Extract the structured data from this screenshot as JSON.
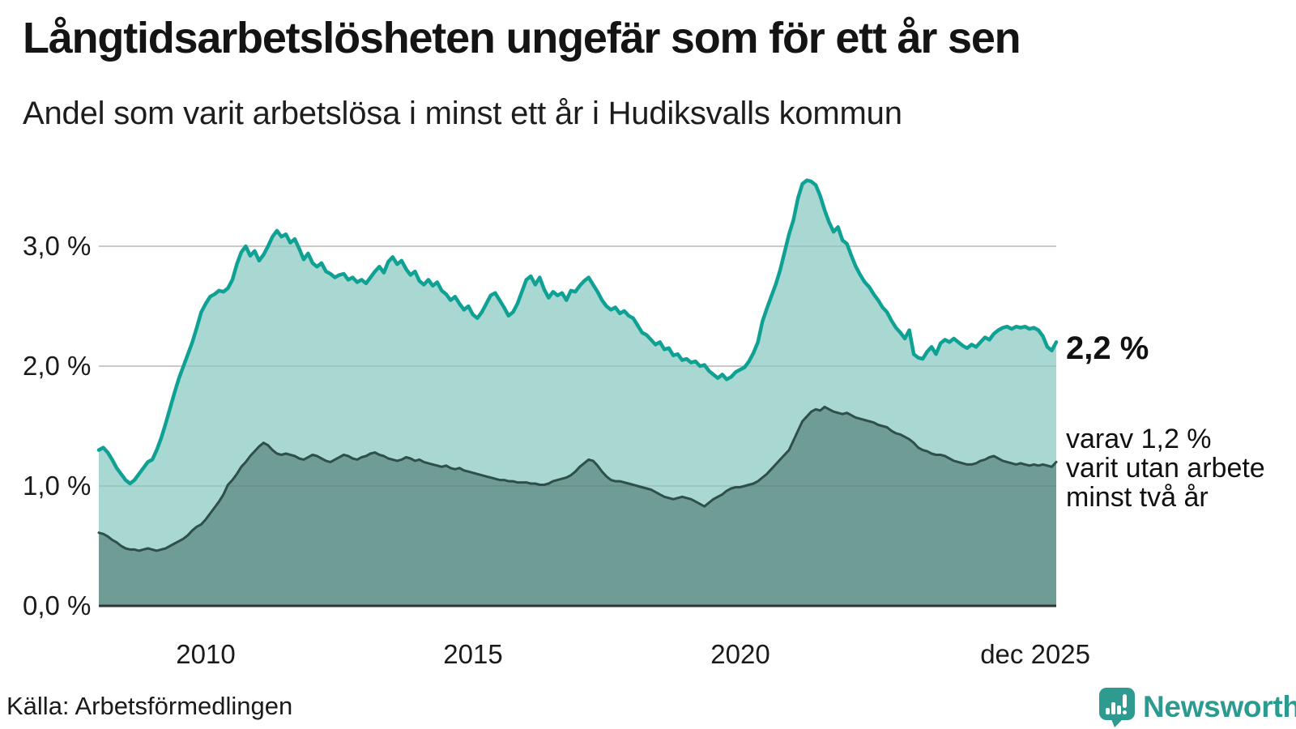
{
  "header": {
    "title": "Långtidsarbetslösheten ungefär som för ett år sen",
    "subtitle": "Andel som varit arbetslösa i minst ett år i Hudiksvalls kommun"
  },
  "footer": {
    "source": "Källa: Arbetsförmedlingen",
    "brand": "Newsworthy"
  },
  "colors": {
    "accent_teal_line": "#0fa294",
    "light_area_fill": "#a9d7d1",
    "dark_area_fill": "#6f9d96",
    "dark_line": "#2f4f49",
    "gridline": "#d9d9d9",
    "axis_baseline": "#333333",
    "brand_teal": "#2c9a90",
    "text_dark": "#141414"
  },
  "chart_data": {
    "type": "area",
    "title": "Långtidsarbetslösheten ungefär som för ett år sen",
    "subtitle": "Andel som varit arbetslösa i minst ett år i Hudiksvalls kommun",
    "x_start": "2008-01",
    "x_end": "2025-12",
    "frequency": "monthly",
    "grid": "horizontal",
    "legend_position": "none",
    "ylim": [
      0,
      3.8
    ],
    "unit": "%",
    "y_ticks": [
      {
        "value": 3,
        "label": "3,0 %"
      },
      {
        "value": 2,
        "label": "2,0 %"
      },
      {
        "value": 1,
        "label": "1,0 %"
      },
      {
        "value": 0,
        "label": "0,0 %"
      }
    ],
    "x_ticks": [
      {
        "year": 2010,
        "label": "2010"
      },
      {
        "year": 2015,
        "label": "2015"
      },
      {
        "year": 2020,
        "label": "2020"
      },
      {
        "year": 2025.92,
        "label": "dec 2025"
      }
    ],
    "end_label": "2,2 %",
    "annotation_lines": {
      "line1": "varav 1,2 %",
      "line2": "varit utan arbete",
      "line3": "minst två år"
    },
    "series": [
      {
        "name": "Andel som varit arbetslösa minst ett år",
        "color": "#0fa294",
        "fill": "#a9d7d1",
        "end_value_pct": 2.2,
        "values": [
          1.3,
          1.32,
          1.28,
          1.22,
          1.15,
          1.1,
          1.05,
          1.02,
          1.05,
          1.1,
          1.15,
          1.2,
          1.22,
          1.3,
          1.4,
          1.52,
          1.65,
          1.78,
          1.9,
          2.0,
          2.1,
          2.2,
          2.32,
          2.45,
          2.52,
          2.58,
          2.6,
          2.63,
          2.62,
          2.65,
          2.72,
          2.85,
          2.95,
          3.0,
          2.92,
          2.96,
          2.88,
          2.93,
          3.0,
          3.08,
          3.13,
          3.08,
          3.1,
          3.03,
          3.06,
          2.98,
          2.89,
          2.94,
          2.86,
          2.83,
          2.86,
          2.79,
          2.77,
          2.74,
          2.76,
          2.77,
          2.72,
          2.74,
          2.7,
          2.72,
          2.69,
          2.74,
          2.79,
          2.83,
          2.78,
          2.87,
          2.91,
          2.85,
          2.88,
          2.81,
          2.76,
          2.79,
          2.71,
          2.68,
          2.72,
          2.67,
          2.7,
          2.63,
          2.6,
          2.55,
          2.58,
          2.52,
          2.47,
          2.5,
          2.43,
          2.4,
          2.45,
          2.52,
          2.59,
          2.61,
          2.55,
          2.49,
          2.42,
          2.45,
          2.52,
          2.62,
          2.72,
          2.75,
          2.68,
          2.74,
          2.64,
          2.57,
          2.62,
          2.59,
          2.61,
          2.55,
          2.63,
          2.62,
          2.67,
          2.71,
          2.74,
          2.68,
          2.62,
          2.55,
          2.5,
          2.47,
          2.49,
          2.44,
          2.46,
          2.42,
          2.4,
          2.34,
          2.28,
          2.26,
          2.22,
          2.18,
          2.2,
          2.14,
          2.15,
          2.09,
          2.1,
          2.05,
          2.06,
          2.03,
          2.04,
          2.0,
          2.01,
          1.96,
          1.93,
          1.9,
          1.93,
          1.89,
          1.91,
          1.95,
          1.97,
          1.99,
          2.04,
          2.11,
          2.2,
          2.37,
          2.48,
          2.58,
          2.68,
          2.8,
          2.95,
          3.1,
          3.22,
          3.4,
          3.52,
          3.55,
          3.54,
          3.51,
          3.42,
          3.3,
          3.2,
          3.12,
          3.16,
          3.05,
          3.02,
          2.92,
          2.83,
          2.76,
          2.7,
          2.66,
          2.6,
          2.55,
          2.49,
          2.45,
          2.38,
          2.32,
          2.28,
          2.23,
          2.3,
          2.1,
          2.07,
          2.06,
          2.12,
          2.16,
          2.1,
          2.19,
          2.22,
          2.2,
          2.23,
          2.2,
          2.17,
          2.15,
          2.18,
          2.16,
          2.2,
          2.24,
          2.22,
          2.27,
          2.3,
          2.32,
          2.33,
          2.31,
          2.33,
          2.32,
          2.33,
          2.31,
          2.32,
          2.3,
          2.25,
          2.16,
          2.13,
          2.2
        ]
      },
      {
        "name": "varav utan arbete minst två år",
        "color": "#2f4f49",
        "fill": "#6f9d96",
        "end_value_pct": 1.2,
        "values": [
          0.61,
          0.6,
          0.58,
          0.55,
          0.53,
          0.5,
          0.48,
          0.47,
          0.47,
          0.46,
          0.47,
          0.48,
          0.47,
          0.46,
          0.47,
          0.48,
          0.5,
          0.52,
          0.54,
          0.56,
          0.59,
          0.63,
          0.66,
          0.68,
          0.72,
          0.77,
          0.82,
          0.87,
          0.93,
          1.01,
          1.05,
          1.1,
          1.16,
          1.2,
          1.25,
          1.29,
          1.33,
          1.36,
          1.34,
          1.3,
          1.27,
          1.26,
          1.27,
          1.26,
          1.25,
          1.23,
          1.22,
          1.24,
          1.26,
          1.25,
          1.23,
          1.21,
          1.2,
          1.22,
          1.24,
          1.26,
          1.25,
          1.23,
          1.22,
          1.24,
          1.25,
          1.27,
          1.28,
          1.26,
          1.25,
          1.23,
          1.22,
          1.21,
          1.22,
          1.24,
          1.23,
          1.21,
          1.22,
          1.2,
          1.19,
          1.18,
          1.17,
          1.16,
          1.17,
          1.15,
          1.14,
          1.15,
          1.13,
          1.12,
          1.11,
          1.1,
          1.09,
          1.08,
          1.07,
          1.06,
          1.05,
          1.05,
          1.04,
          1.04,
          1.03,
          1.03,
          1.03,
          1.02,
          1.02,
          1.01,
          1.01,
          1.02,
          1.04,
          1.05,
          1.06,
          1.07,
          1.09,
          1.12,
          1.16,
          1.19,
          1.22,
          1.21,
          1.17,
          1.12,
          1.08,
          1.05,
          1.04,
          1.04,
          1.03,
          1.02,
          1.01,
          1.0,
          0.99,
          0.98,
          0.97,
          0.95,
          0.93,
          0.91,
          0.9,
          0.89,
          0.9,
          0.91,
          0.9,
          0.89,
          0.87,
          0.85,
          0.83,
          0.86,
          0.89,
          0.91,
          0.93,
          0.96,
          0.98,
          0.99,
          0.99,
          1.0,
          1.01,
          1.02,
          1.04,
          1.07,
          1.1,
          1.14,
          1.18,
          1.22,
          1.26,
          1.3,
          1.38,
          1.46,
          1.54,
          1.58,
          1.62,
          1.64,
          1.63,
          1.66,
          1.64,
          1.62,
          1.61,
          1.6,
          1.61,
          1.59,
          1.57,
          1.56,
          1.55,
          1.54,
          1.53,
          1.51,
          1.5,
          1.49,
          1.46,
          1.44,
          1.43,
          1.41,
          1.39,
          1.36,
          1.32,
          1.3,
          1.29,
          1.27,
          1.26,
          1.26,
          1.25,
          1.23,
          1.21,
          1.2,
          1.19,
          1.18,
          1.18,
          1.19,
          1.21,
          1.22,
          1.24,
          1.25,
          1.23,
          1.21,
          1.2,
          1.19,
          1.18,
          1.19,
          1.18,
          1.17,
          1.18,
          1.17,
          1.18,
          1.17,
          1.16,
          1.2
        ]
      }
    ]
  }
}
